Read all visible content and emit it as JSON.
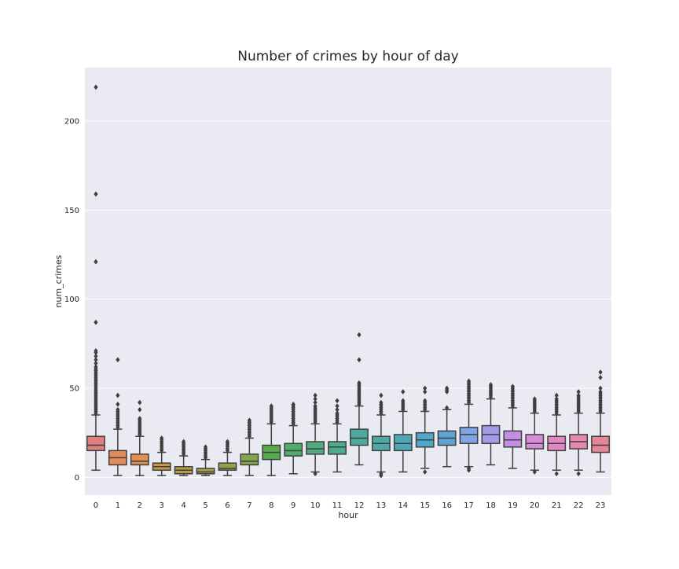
{
  "chart_data": {
    "type": "box",
    "title": "Number of crimes by hour of day",
    "xlabel": "hour",
    "ylabel": "num_crimes",
    "ylim": [
      -10,
      230
    ],
    "yticks": [
      0,
      50,
      100,
      150,
      200
    ],
    "grid": true,
    "categories": [
      "0",
      "1",
      "2",
      "3",
      "4",
      "5",
      "6",
      "7",
      "8",
      "9",
      "10",
      "11",
      "12",
      "13",
      "14",
      "15",
      "16",
      "17",
      "18",
      "19",
      "20",
      "21",
      "22",
      "23"
    ],
    "colors": [
      "#e07f7f",
      "#e58a5d",
      "#e0914f",
      "#c8984a",
      "#b59c46",
      "#a5a04a",
      "#96a24a",
      "#84a64b",
      "#57ab4f",
      "#4fac6a",
      "#4fac80",
      "#4fab8e",
      "#4daa9c",
      "#4ea8a8",
      "#4da8b6",
      "#51a7c7",
      "#5ba4d4",
      "#7ea6e6",
      "#a19be8",
      "#c58ee4",
      "#d98bd7",
      "#e286c5",
      "#e688b0",
      "#e98599"
    ],
    "boxes": [
      {
        "whislo": 4,
        "q1": 15,
        "med": 18,
        "q3": 23,
        "whishi": 35,
        "fliers": [
          36,
          37,
          38,
          39,
          40,
          41,
          42,
          43,
          44,
          45,
          46,
          47,
          48,
          49,
          50,
          51,
          52,
          53,
          54,
          55,
          56,
          57,
          58,
          59,
          60,
          61,
          62,
          64,
          66,
          68,
          70,
          71,
          87,
          121,
          159,
          219
        ]
      },
      {
        "whislo": 1,
        "q1": 7,
        "med": 11,
        "q3": 15,
        "whishi": 27,
        "fliers": [
          28,
          29,
          30,
          31,
          32,
          33,
          34,
          35,
          36,
          37,
          38,
          41,
          46,
          66
        ]
      },
      {
        "whislo": 1,
        "q1": 7,
        "med": 9,
        "q3": 13,
        "whishi": 23,
        "fliers": [
          24,
          25,
          26,
          27,
          28,
          29,
          30,
          31,
          32,
          33,
          38,
          42
        ]
      },
      {
        "whislo": 1,
        "q1": 4,
        "med": 6,
        "q3": 8,
        "whishi": 14,
        "fliers": [
          15,
          16,
          17,
          18,
          19,
          20,
          21,
          22
        ]
      },
      {
        "whislo": 1,
        "q1": 2,
        "med": 4,
        "q3": 6,
        "whishi": 12,
        "fliers": [
          13,
          14,
          15,
          16,
          17,
          18,
          19,
          20
        ]
      },
      {
        "whislo": 1,
        "q1": 2,
        "med": 3,
        "q3": 5,
        "whishi": 10,
        "fliers": [
          11,
          12,
          13,
          14,
          15,
          16,
          17
        ]
      },
      {
        "whislo": 1,
        "q1": 4,
        "med": 5,
        "q3": 8,
        "whishi": 14,
        "fliers": [
          15,
          16,
          17,
          18,
          19,
          20
        ]
      },
      {
        "whislo": 1,
        "q1": 7,
        "med": 9,
        "q3": 13,
        "whishi": 22,
        "fliers": [
          23,
          24,
          25,
          26,
          27,
          28,
          29,
          30,
          31,
          32
        ]
      },
      {
        "whislo": 1,
        "q1": 10,
        "med": 14,
        "q3": 18,
        "whishi": 30,
        "fliers": [
          31,
          32,
          33,
          34,
          35,
          36,
          37,
          38,
          39,
          40
        ]
      },
      {
        "whislo": 2,
        "q1": 12,
        "med": 15,
        "q3": 19,
        "whishi": 29,
        "fliers": [
          30,
          31,
          32,
          33,
          34,
          35,
          36,
          37,
          38,
          39,
          40,
          41
        ]
      },
      {
        "whislo": 3,
        "q1": 13,
        "med": 16,
        "q3": 20,
        "whishi": 30,
        "fliers": [
          2,
          31,
          32,
          33,
          34,
          35,
          36,
          37,
          38,
          39,
          40,
          42,
          44,
          46
        ]
      },
      {
        "whislo": 3,
        "q1": 13,
        "med": 17,
        "q3": 20,
        "whishi": 30,
        "fliers": [
          31,
          32,
          33,
          34,
          35,
          36,
          38,
          40,
          43
        ]
      },
      {
        "whislo": 7,
        "q1": 18,
        "med": 22,
        "q3": 27,
        "whishi": 40,
        "fliers": [
          41,
          42,
          43,
          44,
          45,
          46,
          47,
          48,
          49,
          50,
          51,
          52,
          53,
          66,
          80
        ]
      },
      {
        "whislo": 3,
        "q1": 15,
        "med": 19,
        "q3": 23,
        "whishi": 35,
        "fliers": [
          1,
          2,
          36,
          37,
          38,
          39,
          40,
          41,
          42,
          46
        ]
      },
      {
        "whislo": 3,
        "q1": 15,
        "med": 19,
        "q3": 24,
        "whishi": 37,
        "fliers": [
          38,
          39,
          40,
          41,
          42,
          43,
          48
        ]
      },
      {
        "whislo": 5,
        "q1": 17,
        "med": 21,
        "q3": 25,
        "whishi": 37,
        "fliers": [
          3,
          38,
          39,
          40,
          41,
          42,
          43,
          48,
          50
        ]
      },
      {
        "whislo": 6,
        "q1": 18,
        "med": 22,
        "q3": 26,
        "whishi": 38,
        "fliers": [
          39,
          48,
          49,
          50
        ]
      },
      {
        "whislo": 6,
        "q1": 19,
        "med": 24,
        "q3": 28,
        "whishi": 41,
        "fliers": [
          4,
          5,
          42,
          43,
          44,
          45,
          46,
          47,
          48,
          49,
          50,
          51,
          52,
          53,
          54
        ]
      },
      {
        "whislo": 7,
        "q1": 19,
        "med": 24,
        "q3": 29,
        "whishi": 44,
        "fliers": [
          45,
          46,
          47,
          48,
          49,
          50,
          51,
          52
        ]
      },
      {
        "whislo": 5,
        "q1": 17,
        "med": 21,
        "q3": 26,
        "whishi": 39,
        "fliers": [
          40,
          41,
          42,
          43,
          44,
          45,
          46,
          47,
          48,
          49,
          50,
          51
        ]
      },
      {
        "whislo": 4,
        "q1": 16,
        "med": 19,
        "q3": 24,
        "whishi": 36,
        "fliers": [
          3,
          37,
          38,
          39,
          40,
          41,
          42,
          43,
          44
        ]
      },
      {
        "whislo": 4,
        "q1": 15,
        "med": 19,
        "q3": 23,
        "whishi": 35,
        "fliers": [
          2,
          36,
          37,
          38,
          39,
          40,
          41,
          42,
          43,
          44,
          46
        ]
      },
      {
        "whislo": 4,
        "q1": 16,
        "med": 20,
        "q3": 24,
        "whishi": 36,
        "fliers": [
          2,
          37,
          38,
          39,
          40,
          41,
          42,
          43,
          44,
          45,
          46,
          48
        ]
      },
      {
        "whislo": 3,
        "q1": 14,
        "med": 18,
        "q3": 23,
        "whishi": 36,
        "fliers": [
          37,
          38,
          39,
          40,
          41,
          42,
          43,
          44,
          45,
          46,
          47,
          48,
          50,
          56,
          59
        ]
      }
    ]
  }
}
